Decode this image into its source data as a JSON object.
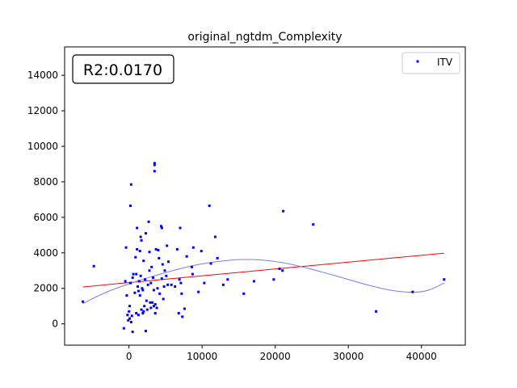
{
  "chart_data": {
    "type": "scatter",
    "title": "original_ngtdm_Complexity",
    "xlabel": "",
    "ylabel": "",
    "annotation": "R2:0.0170",
    "xlim": [
      -8800,
      46000
    ],
    "ylim": [
      -1200,
      15600
    ],
    "xticks": [
      0,
      10000,
      20000,
      30000,
      40000
    ],
    "xtick_labels": [
      "0",
      "10000",
      "20000",
      "30000",
      "40000"
    ],
    "yticks": [
      0,
      2000,
      4000,
      6000,
      8000,
      10000,
      12000,
      14000
    ],
    "ytick_labels": [
      "0",
      "2000",
      "4000",
      "6000",
      "8000",
      "10000",
      "12000",
      "14000"
    ],
    "grid": false,
    "legend": {
      "position": "top-right",
      "entries": [
        {
          "label": "ITV",
          "color": "#0000ff"
        }
      ]
    },
    "series": [
      {
        "name": "ITV",
        "color": "#0000ff",
        "points": [
          [
            -6300,
            1250
          ],
          [
            -4800,
            3250
          ],
          [
            -700,
            -250
          ],
          [
            -400,
            4300
          ],
          [
            -500,
            2400
          ],
          [
            -300,
            1600
          ],
          [
            -200,
            500
          ],
          [
            -100,
            200
          ],
          [
            0,
            700
          ],
          [
            100,
            1000
          ],
          [
            100,
            300
          ],
          [
            200,
            2300
          ],
          [
            200,
            6650
          ],
          [
            300,
            7850
          ],
          [
            300,
            100
          ],
          [
            400,
            450
          ],
          [
            500,
            2600
          ],
          [
            500,
            -450
          ],
          [
            600,
            2800
          ],
          [
            800,
            1750
          ],
          [
            900,
            3750
          ],
          [
            1000,
            600
          ],
          [
            1000,
            2800
          ],
          [
            1100,
            5400
          ],
          [
            1100,
            4200
          ],
          [
            1200,
            2100
          ],
          [
            1300,
            1850
          ],
          [
            1300,
            500
          ],
          [
            1400,
            2400
          ],
          [
            1500,
            1600
          ],
          [
            1500,
            4100
          ],
          [
            1600,
            4900
          ],
          [
            1600,
            2700
          ],
          [
            1700,
            800
          ],
          [
            1700,
            4700
          ],
          [
            1800,
            2000
          ],
          [
            1900,
            600
          ],
          [
            1900,
            1900
          ],
          [
            2000,
            3550
          ],
          [
            2000,
            700
          ],
          [
            2100,
            1000
          ],
          [
            2200,
            2500
          ],
          [
            2300,
            5100
          ],
          [
            2300,
            -400
          ],
          [
            2400,
            1300
          ],
          [
            2500,
            800
          ],
          [
            2600,
            2200
          ],
          [
            2700,
            5750
          ],
          [
            2800,
            3000
          ],
          [
            2800,
            4050
          ],
          [
            2900,
            1200
          ],
          [
            3000,
            2300
          ],
          [
            3000,
            900
          ],
          [
            3100,
            3200
          ],
          [
            3200,
            1200
          ],
          [
            3300,
            2600
          ],
          [
            3400,
            1900
          ],
          [
            3400,
            1000
          ],
          [
            3500,
            9050
          ],
          [
            3500,
            8950
          ],
          [
            3500,
            8600
          ],
          [
            3600,
            600
          ],
          [
            3600,
            1100
          ],
          [
            3700,
            4200
          ],
          [
            3800,
            900
          ],
          [
            3900,
            2000
          ],
          [
            4000,
            4150
          ],
          [
            4100,
            3700
          ],
          [
            4200,
            1700
          ],
          [
            4400,
            5500
          ],
          [
            4500,
            5400
          ],
          [
            4500,
            2550
          ],
          [
            4600,
            3350
          ],
          [
            4700,
            1400
          ],
          [
            4800,
            2100
          ],
          [
            4900,
            3000
          ],
          [
            5100,
            2700
          ],
          [
            5200,
            4400
          ],
          [
            5300,
            2200
          ],
          [
            5400,
            3500
          ],
          [
            5800,
            2200
          ],
          [
            6300,
            2100
          ],
          [
            6600,
            4200
          ],
          [
            6800,
            600
          ],
          [
            6900,
            2500
          ],
          [
            7000,
            5400
          ],
          [
            7100,
            2300
          ],
          [
            7200,
            1700
          ],
          [
            7300,
            400
          ],
          [
            7600,
            850
          ],
          [
            7900,
            3800
          ],
          [
            8600,
            3200
          ],
          [
            8700,
            2800
          ],
          [
            8800,
            4300
          ],
          [
            9500,
            1800
          ],
          [
            9900,
            4100
          ],
          [
            10300,
            2300
          ],
          [
            11000,
            6650
          ],
          [
            11200,
            3400
          ],
          [
            11800,
            4900
          ],
          [
            12100,
            3700
          ],
          [
            12900,
            2200
          ],
          [
            13500,
            2500
          ],
          [
            15700,
            1700
          ],
          [
            17100,
            2400
          ],
          [
            19800,
            2500
          ],
          [
            20600,
            3100
          ],
          [
            21000,
            3000
          ],
          [
            21100,
            6350
          ],
          [
            25200,
            5600
          ],
          [
            33800,
            700
          ],
          [
            38800,
            1800
          ],
          [
            43100,
            2500
          ]
        ]
      }
    ],
    "fit_lines": [
      {
        "kind": "linear",
        "color": "#ff0000",
        "x": [
          -6300,
          43100
        ],
        "y": [
          2080,
          3980
        ]
      },
      {
        "kind": "polynomial",
        "color": "#7b7bee",
        "x": [
          -6300,
          -3000,
          0,
          3000,
          6000,
          9000,
          12000,
          15000,
          18000,
          21000,
          24000,
          27000,
          30000,
          33000,
          36000,
          39000,
          41000,
          43100
        ],
        "y": [
          1150,
          1800,
          2250,
          2650,
          3000,
          3300,
          3500,
          3620,
          3600,
          3450,
          3180,
          2850,
          2500,
          2150,
          1880,
          1780,
          1900,
          2300
        ]
      }
    ]
  }
}
